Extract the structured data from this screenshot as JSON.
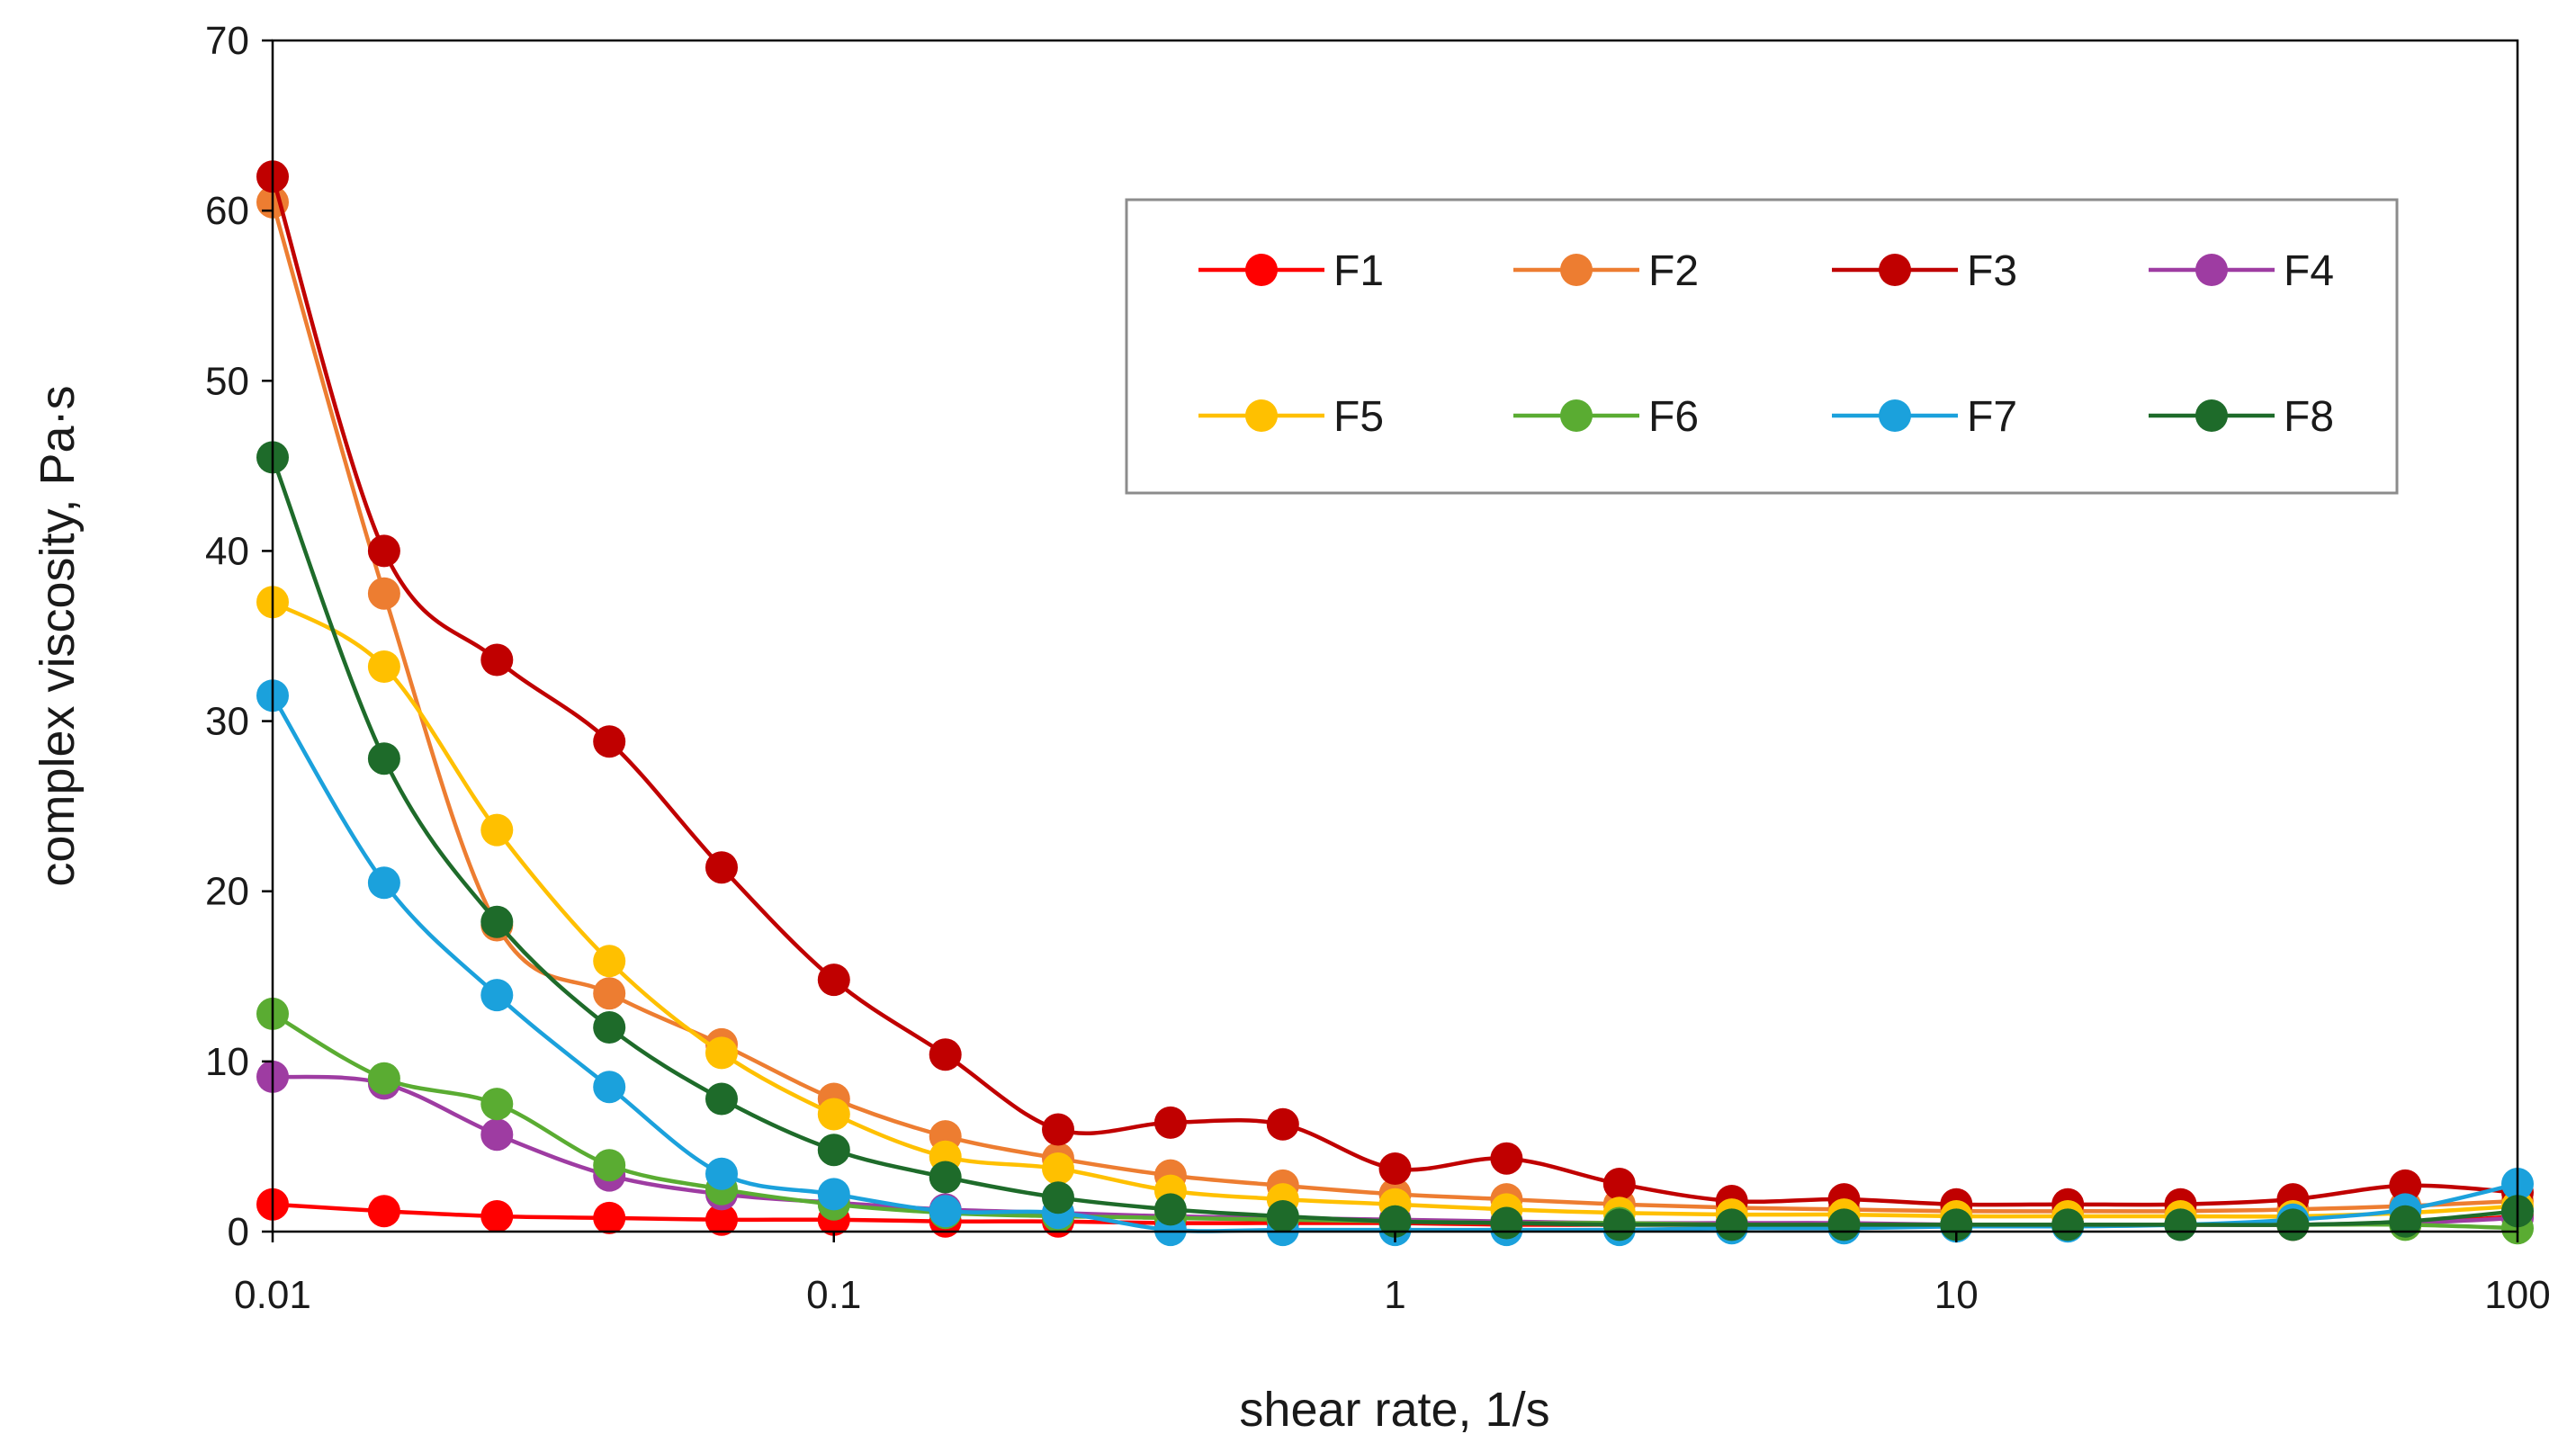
{
  "chart_data": {
    "type": "line",
    "title": "",
    "xlabel": "shear rate, 1/s",
    "ylabel": "complex viscosity, Pa·s",
    "xscale": "log",
    "xlim": [
      0.01,
      100
    ],
    "ylim": [
      0,
      70
    ],
    "xticks": [
      0.01,
      0.1,
      1,
      10,
      100
    ],
    "xtick_labels": [
      "0.01",
      "0.1",
      "1",
      "10",
      "100"
    ],
    "yticks": [
      0,
      10,
      20,
      30,
      40,
      50,
      60,
      70
    ],
    "ytick_labels": [
      "0",
      "10",
      "20",
      "30",
      "40",
      "50",
      "60",
      "70"
    ],
    "grid": false,
    "legend_position": "top-right",
    "x": [
      0.01,
      0.0158,
      0.0251,
      0.0398,
      0.0631,
      0.1,
      0.158,
      0.251,
      0.398,
      0.631,
      1,
      1.58,
      2.51,
      3.98,
      6.31,
      10,
      15.8,
      25.1,
      39.8,
      63.1,
      100
    ],
    "series": [
      {
        "name": "F1",
        "color": "#ff0000",
        "values": [
          1.6,
          1.2,
          0.9,
          0.8,
          0.7,
          0.7,
          0.6,
          0.6,
          0.5,
          0.5,
          0.5,
          0.4,
          0.4,
          0.4,
          0.4,
          0.4,
          0.4,
          0.4,
          0.4,
          0.5,
          0.9
        ]
      },
      {
        "name": "F2",
        "color": "#ed7d31",
        "values": [
          60.5,
          37.5,
          18.0,
          14.0,
          11.0,
          7.8,
          5.6,
          4.3,
          3.3,
          2.7,
          2.2,
          1.9,
          1.6,
          1.4,
          1.3,
          1.2,
          1.2,
          1.2,
          1.3,
          1.5,
          1.8
        ]
      },
      {
        "name": "F3",
        "color": "#c00000",
        "values": [
          62.0,
          40.0,
          33.6,
          28.8,
          21.4,
          14.8,
          10.4,
          6.0,
          6.4,
          6.3,
          3.7,
          4.3,
          2.8,
          1.8,
          1.9,
          1.6,
          1.6,
          1.6,
          1.9,
          2.7,
          2.3
        ]
      },
      {
        "name": "F4",
        "color": "#9e3ca2",
        "values": [
          9.1,
          8.7,
          5.7,
          3.3,
          2.2,
          1.7,
          1.3,
          1.1,
          0.9,
          0.8,
          0.7,
          0.6,
          0.5,
          0.5,
          0.5,
          0.4,
          0.4,
          0.4,
          0.4,
          0.5,
          0.8
        ]
      },
      {
        "name": "F5",
        "color": "#ffc000",
        "values": [
          37.0,
          33.2,
          23.6,
          15.9,
          10.5,
          6.9,
          4.4,
          3.7,
          2.4,
          1.9,
          1.6,
          1.3,
          1.1,
          1.0,
          1.0,
          0.9,
          0.9,
          0.9,
          0.9,
          1.1,
          1.5
        ]
      },
      {
        "name": "F6",
        "color": "#5aac32",
        "values": [
          12.8,
          9.0,
          7.5,
          3.9,
          2.5,
          1.6,
          1.1,
          0.9,
          0.8,
          0.7,
          0.6,
          0.5,
          0.5,
          0.4,
          0.4,
          0.4,
          0.4,
          0.4,
          0.4,
          0.4,
          0.2
        ]
      },
      {
        "name": "F7",
        "color": "#1ba1dc",
        "values": [
          31.5,
          20.5,
          13.9,
          8.5,
          3.4,
          2.2,
          1.2,
          1.1,
          0.1,
          0.1,
          0.1,
          0.1,
          0.1,
          0.2,
          0.2,
          0.3,
          0.3,
          0.4,
          0.7,
          1.3,
          2.8
        ]
      },
      {
        "name": "F8",
        "color": "#1e6b2a",
        "values": [
          45.5,
          27.8,
          18.2,
          12.0,
          7.8,
          4.8,
          3.2,
          2.0,
          1.3,
          0.9,
          0.6,
          0.5,
          0.4,
          0.4,
          0.4,
          0.4,
          0.4,
          0.4,
          0.4,
          0.6,
          1.2
        ]
      }
    ]
  }
}
